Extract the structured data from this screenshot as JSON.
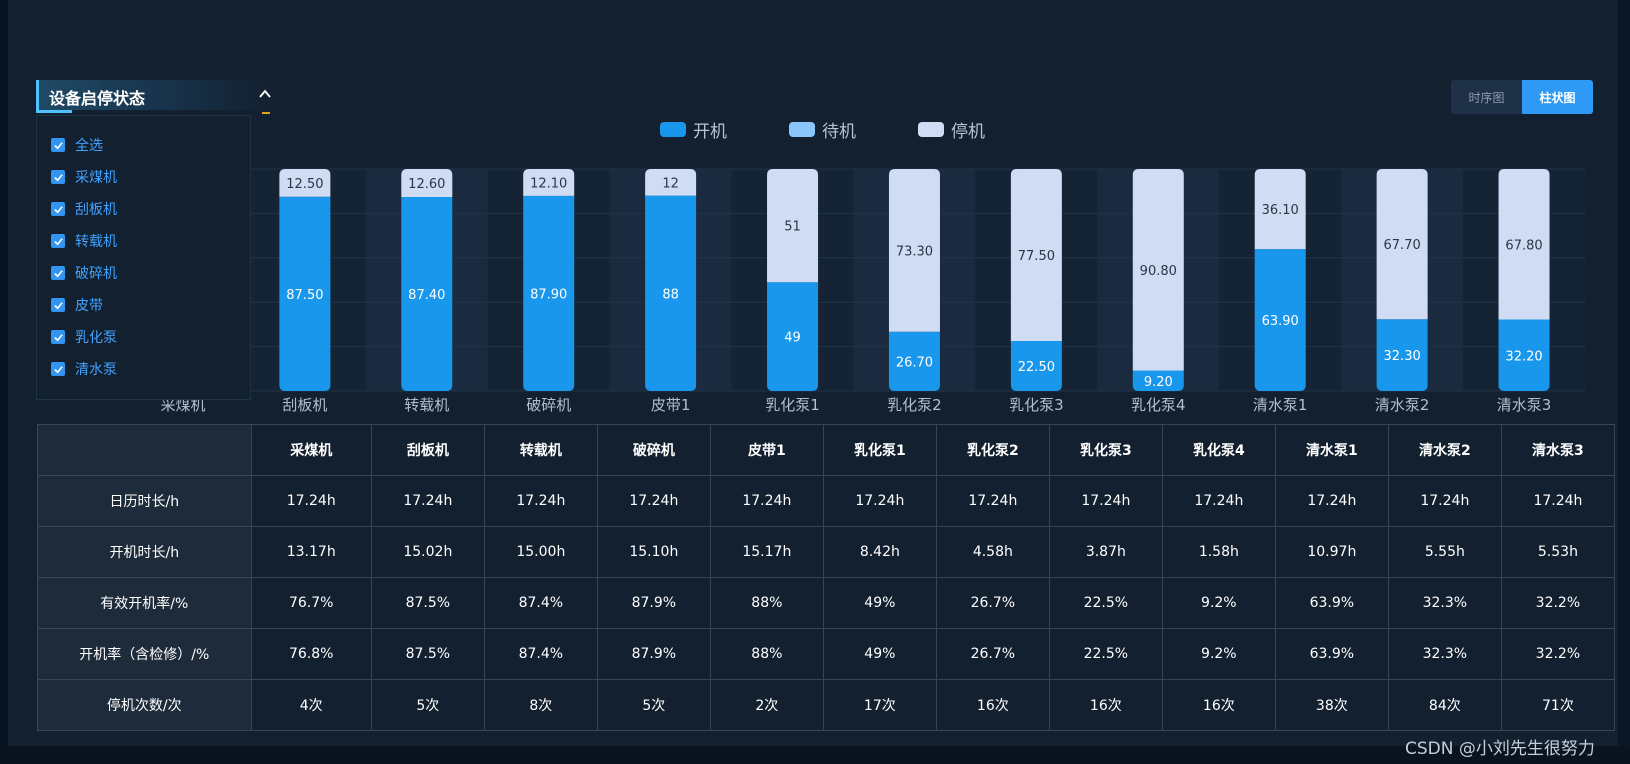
{
  "view_toggle": {
    "timeseries_label": "时序图",
    "bar_label": "柱状图",
    "active": "bar"
  },
  "legend": [
    {
      "label": "开机",
      "color": "#1897ec"
    },
    {
      "label": "待机",
      "color": "#8ac6fb"
    },
    {
      "label": "停机",
      "color": "#cfdcf4"
    }
  ],
  "filter": {
    "title": "设备启停状态",
    "items": [
      {
        "label": "全选",
        "checked": true
      },
      {
        "label": "采煤机",
        "checked": true
      },
      {
        "label": "刮板机",
        "checked": true
      },
      {
        "label": "转载机",
        "checked": true
      },
      {
        "label": "破碎机",
        "checked": true
      },
      {
        "label": "皮带",
        "checked": true
      },
      {
        "label": "乳化泵",
        "checked": true
      },
      {
        "label": "清水泵",
        "checked": true
      }
    ]
  },
  "chart_data": {
    "type": "bar",
    "stacked": true,
    "categories": [
      "采煤机",
      "刮板机",
      "转载机",
      "破碎机",
      "皮带1",
      "乳化泵1",
      "乳化泵2",
      "乳化泵3",
      "乳化泵4",
      "清水泵1",
      "清水泵2",
      "清水泵3"
    ],
    "ylim": [
      0,
      100
    ],
    "series": [
      {
        "name": "开机",
        "values": [
          null,
          87.5,
          87.4,
          87.9,
          88,
          49,
          26.7,
          22.5,
          9.2,
          63.9,
          32.3,
          32.2
        ],
        "labels": [
          "",
          "87.50",
          "87.40",
          "87.90",
          "88",
          "49",
          "26.70",
          "22.50",
          "9.20",
          "63.90",
          "32.30",
          "32.20"
        ]
      },
      {
        "name": "待机",
        "values": [
          null,
          0,
          0,
          0,
          0,
          0,
          0,
          0,
          0,
          0,
          0,
          0
        ],
        "labels": [
          "",
          "",
          "",
          "",
          "",
          "",
          "",
          "",
          "",
          "",
          "",
          ""
        ]
      },
      {
        "name": "停机",
        "values": [
          null,
          12.5,
          12.6,
          12.1,
          12,
          51,
          73.3,
          77.5,
          90.8,
          36.1,
          67.7,
          67.8
        ],
        "labels": [
          "",
          "12.50",
          "12.60",
          "12.10",
          "12",
          "51",
          "73.30",
          "77.50",
          "90.80",
          "36.10",
          "67.70",
          "67.80"
        ]
      }
    ]
  },
  "table": {
    "corner": "",
    "columns": [
      "采煤机",
      "刮板机",
      "转载机",
      "破碎机",
      "皮带1",
      "乳化泵1",
      "乳化泵2",
      "乳化泵3",
      "乳化泵4",
      "清水泵1",
      "清水泵2",
      "清水泵3"
    ],
    "rows": [
      {
        "label": "日历时长/h",
        "values": [
          "17.24h",
          "17.24h",
          "17.24h",
          "17.24h",
          "17.24h",
          "17.24h",
          "17.24h",
          "17.24h",
          "17.24h",
          "17.24h",
          "17.24h",
          "17.24h"
        ]
      },
      {
        "label": "开机时长/h",
        "values": [
          "13.17h",
          "15.02h",
          "15.00h",
          "15.10h",
          "15.17h",
          "8.42h",
          "4.58h",
          "3.87h",
          "1.58h",
          "10.97h",
          "5.55h",
          "5.53h"
        ]
      },
      {
        "label": "有效开机率/%",
        "values": [
          "76.7%",
          "87.5%",
          "87.4%",
          "87.9%",
          "88%",
          "49%",
          "26.7%",
          "22.5%",
          "9.2%",
          "63.9%",
          "32.3%",
          "32.2%"
        ]
      },
      {
        "label": "开机率（含检修）/%",
        "values": [
          "76.8%",
          "87.5%",
          "87.4%",
          "87.9%",
          "88%",
          "49%",
          "26.7%",
          "22.5%",
          "9.2%",
          "63.9%",
          "32.3%",
          "32.2%"
        ]
      },
      {
        "label": "停机次数/次",
        "values": [
          "4次",
          "5次",
          "8次",
          "5次",
          "2次",
          "17次",
          "16次",
          "16次",
          "16次",
          "38次",
          "84次",
          "71次"
        ]
      }
    ]
  },
  "watermark": "CSDN @小刘先生很努力"
}
